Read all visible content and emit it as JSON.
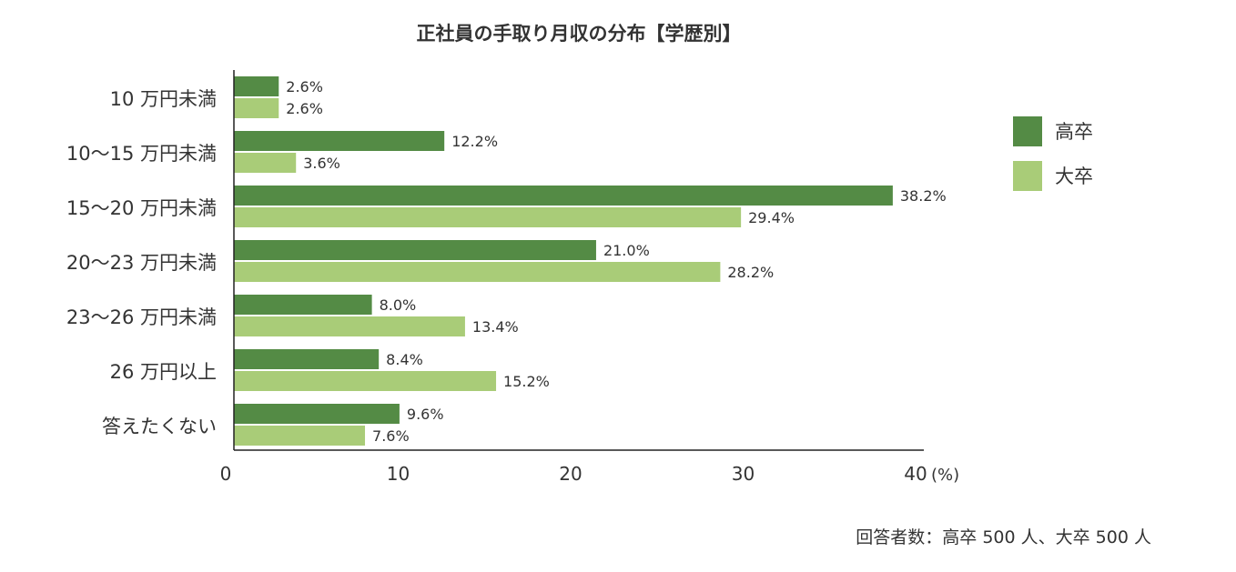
{
  "chart_data": {
    "type": "bar",
    "orientation": "horizontal",
    "title": "正社員の手取り月収の分布【学歴別】",
    "categories": [
      "10 万円未満",
      "10～15 万円未満",
      "15～20 万円未満",
      "20～23 万円未満",
      "23～26 万円未満",
      "26 万円以上",
      "答えたくない"
    ],
    "series": [
      {
        "name": "高卒",
        "color": "#548b45",
        "values": [
          2.6,
          12.2,
          38.2,
          21.0,
          8.0,
          8.4,
          9.6
        ]
      },
      {
        "name": "大卒",
        "color": "#a9cc78",
        "values": [
          2.6,
          3.6,
          29.4,
          28.2,
          13.4,
          15.2,
          7.6
        ]
      }
    ],
    "xlim": [
      0,
      40
    ],
    "xticks": [
      0,
      10,
      20,
      30,
      40
    ],
    "xunit": "(%)",
    "value_suffix": "%",
    "grid": false,
    "legend_position": "right",
    "note": "回答者数：高卒 500 人、大卒 500 人"
  }
}
